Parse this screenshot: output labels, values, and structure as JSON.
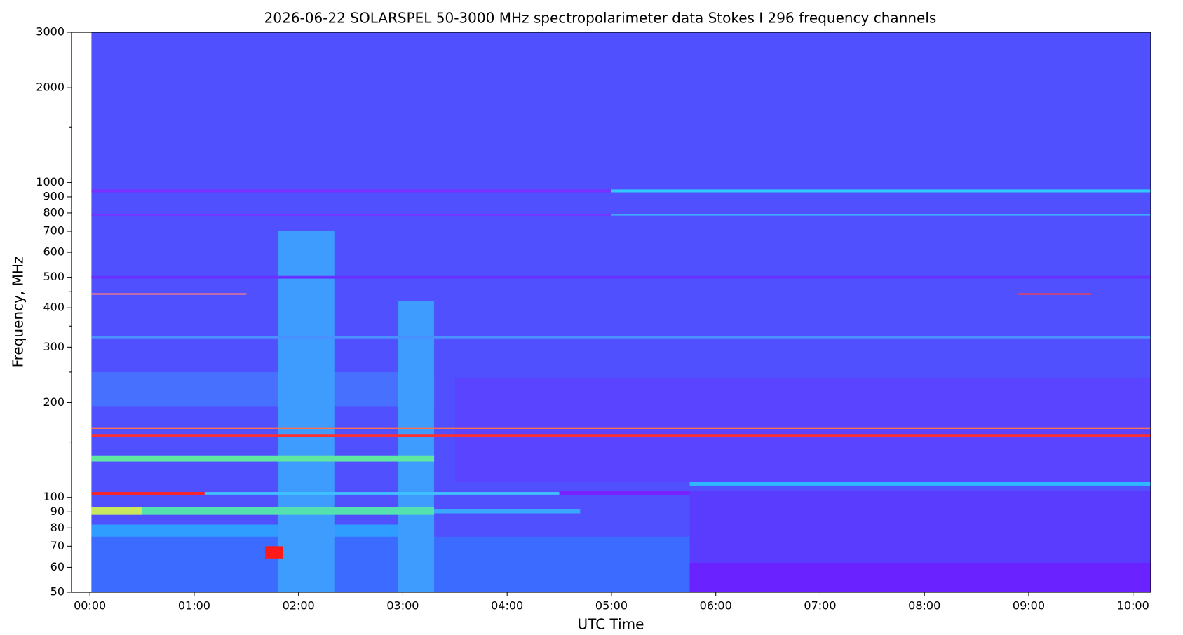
{
  "chart_data": {
    "type": "spectrogram",
    "title": "2026-06-22       SOLARSPEL   50-3000 MHz spectropolarimeter data       Stokes I   296 frequency channels",
    "xlabel": "UTC Time",
    "ylabel": "Frequency, MHz",
    "background": "#5050ff",
    "xlim": [
      -0.176,
      10.17
    ],
    "xticks": [
      {
        "value": 0,
        "label": "00:00"
      },
      {
        "value": 1,
        "label": "01:00"
      },
      {
        "value": 2,
        "label": "02:00"
      },
      {
        "value": 3,
        "label": "03:00"
      },
      {
        "value": 4,
        "label": "04:00"
      },
      {
        "value": 5,
        "label": "05:00"
      },
      {
        "value": 6,
        "label": "06:00"
      },
      {
        "value": 7,
        "label": "07:00"
      },
      {
        "value": 8,
        "label": "08:00"
      },
      {
        "value": 9,
        "label": "09:00"
      },
      {
        "value": 10,
        "label": "10:00"
      }
    ],
    "ylim": [
      50,
      3000
    ],
    "ylog": true,
    "yticks": [
      50,
      60,
      70,
      80,
      90,
      100,
      200,
      300,
      400,
      500,
      600,
      700,
      800,
      900,
      1000,
      2000,
      3000
    ],
    "yminorticks": [
      150,
      250,
      350,
      450,
      1500
    ],
    "features": [
      {
        "t": [
          0.015,
          5.75
        ],
        "f": [
          50,
          75
        ],
        "color": "#3c6cff"
      },
      {
        "t": [
          5.75,
          10.17
        ],
        "f": [
          50,
          62
        ],
        "color": "#6a22ff"
      },
      {
        "t": [
          5.75,
          10.17
        ],
        "f": [
          62,
          105
        ],
        "color": "#5a3cff"
      },
      {
        "t": [
          3.5,
          10.17
        ],
        "f": [
          112,
          240
        ],
        "color": "#5a44ff"
      },
      {
        "t": [
          0.015,
          3.3
        ],
        "f": [
          195,
          250
        ],
        "color": "#4870ff"
      },
      {
        "t": [
          0.015,
          3.3
        ],
        "f": [
          75,
          82
        ],
        "color": "#2f9cff"
      },
      {
        "t": [
          1.8,
          2.35
        ],
        "f": [
          50,
          700
        ],
        "color": "#3f9cff"
      },
      {
        "t": [
          2.95,
          3.3
        ],
        "f": [
          50,
          420
        ],
        "color": "#3f9cff"
      },
      {
        "t": [
          0.015,
          0.5
        ],
        "f": [
          88,
          93
        ],
        "color": "#c8e860"
      },
      {
        "t": [
          0.5,
          3.3
        ],
        "f": [
          88,
          93
        ],
        "color": "#55e0b0"
      },
      {
        "t": [
          3.3,
          4.7
        ],
        "f": [
          89,
          92
        ],
        "color": "#3aa8ff"
      },
      {
        "t": [
          0.015,
          1.1
        ],
        "f": [
          102,
          104
        ],
        "color": "#ff2020"
      },
      {
        "t": [
          1.1,
          4.5
        ],
        "f": [
          102,
          104
        ],
        "color": "#40c0ff"
      },
      {
        "t": [
          4.5,
          5.75
        ],
        "f": [
          102,
          105
        ],
        "color": "#7a20ff"
      },
      {
        "t": [
          5.75,
          10.17
        ],
        "f": [
          109,
          112
        ],
        "color": "#30b8ff"
      },
      {
        "t": [
          0.015,
          3.3
        ],
        "f": [
          130,
          136
        ],
        "color": "#60e8a0"
      },
      {
        "t": [
          0.015,
          10.17
        ],
        "f": [
          156,
          159
        ],
        "color": "#ff3030"
      },
      {
        "t": [
          0.015,
          10.17
        ],
        "f": [
          165,
          167
        ],
        "color": "#ff7050"
      },
      {
        "t": [
          0.015,
          10.17
        ],
        "f": [
          320,
          325
        ],
        "color": "#4a90ff"
      },
      {
        "t": [
          0.015,
          1.5
        ],
        "f": [
          440,
          445
        ],
        "color": "#ff8080"
      },
      {
        "t": [
          8.9,
          9.6
        ],
        "f": [
          440,
          445
        ],
        "color": "#ff4040"
      },
      {
        "t": [
          0.015,
          10.17
        ],
        "f": [
          495,
          505
        ],
        "color": "#6a30ff"
      },
      {
        "t": [
          0.015,
          5.0
        ],
        "f": [
          785,
          795
        ],
        "color": "#7a30ff"
      },
      {
        "t": [
          5.0,
          10.17
        ],
        "f": [
          785,
          795
        ],
        "color": "#40a8ff"
      },
      {
        "t": [
          0.015,
          5.0
        ],
        "f": [
          930,
          950
        ],
        "color": "#7a30ff"
      },
      {
        "t": [
          5.0,
          10.17
        ],
        "f": [
          930,
          950
        ],
        "color": "#30c8ff"
      },
      {
        "t": [
          1.68,
          1.85
        ],
        "f": [
          64,
          70
        ],
        "color": "#ff1a1a"
      }
    ]
  }
}
